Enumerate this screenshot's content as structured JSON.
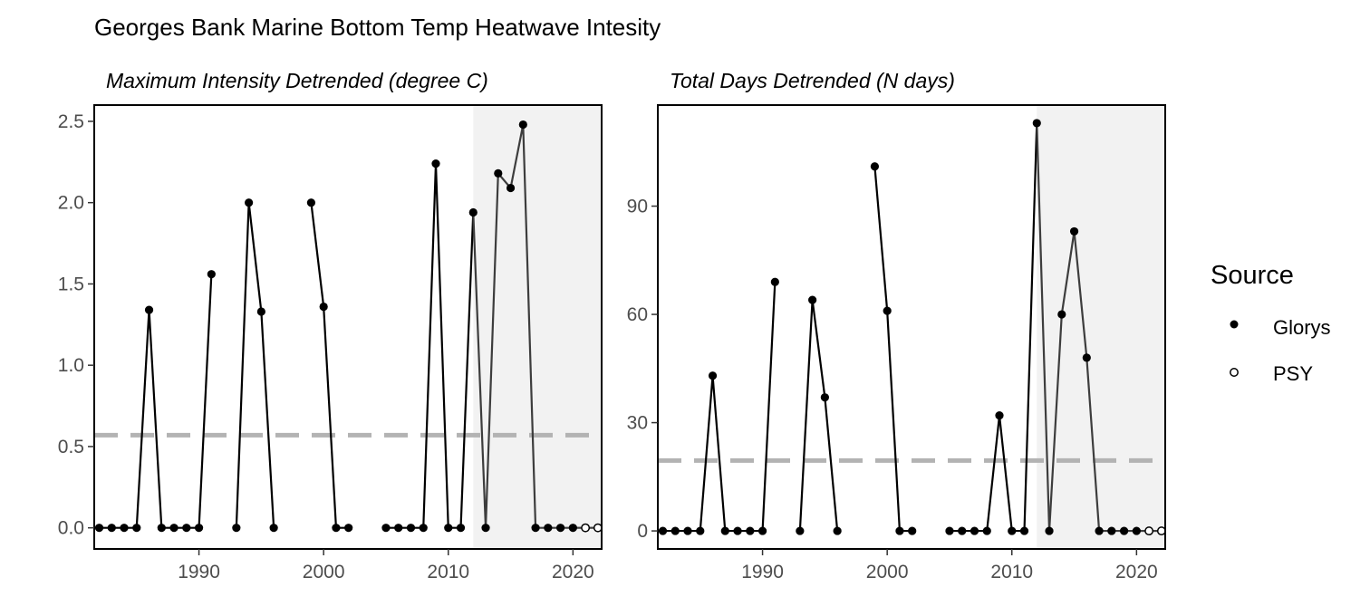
{
  "title": "Georges Bank Marine Bottom Temp Heatwave Intesity",
  "legend": {
    "title": "Source",
    "placement": "right",
    "items": [
      {
        "label": "Glorys",
        "marker": "filled-circle"
      },
      {
        "label": "PSY",
        "marker": "open-circle"
      }
    ]
  },
  "colors": {
    "line": "#000000",
    "line_shaded": "#3d3d3d",
    "reference": "#b3b3b3",
    "shade": "#f2f2f2",
    "tick_text": "#4d4d4d",
    "tick_mark": "#333333"
  },
  "chart_data": [
    {
      "type": "line",
      "title": "Maximum Intensity Detrended (degree C)",
      "xlabel": "",
      "ylabel": "",
      "xlim": [
        1981.6,
        2022.3
      ],
      "ylim": [
        -0.13,
        2.6
      ],
      "x_ticks": [
        1990,
        2000,
        2010,
        2020
      ],
      "y_ticks": [
        0.0,
        0.5,
        1.0,
        1.5,
        2.0,
        2.5
      ],
      "y_tick_labels": [
        "0.0",
        "0.5",
        "1.0",
        "1.5",
        "2.0",
        "2.5"
      ],
      "reference_line": 0.57,
      "shaded_x_range": [
        2012,
        2022.3
      ],
      "grid": false,
      "series": [
        {
          "name": "Glorys",
          "x": [
            1982,
            1983,
            1984,
            1985,
            1986,
            1987,
            1988,
            1989,
            1990,
            1991,
            1992,
            1993,
            1994,
            1995,
            1996,
            1997,
            1998,
            1999,
            2000,
            2001,
            2002,
            2003,
            2004,
            2005,
            2006,
            2007,
            2008,
            2009,
            2010,
            2011,
            2012,
            2013,
            2014,
            2015,
            2016,
            2017,
            2018,
            2019,
            2020
          ],
          "y": [
            0,
            0,
            0,
            0,
            1.34,
            0,
            0,
            0,
            0,
            1.56,
            null,
            0,
            2.0,
            1.33,
            0,
            null,
            null,
            2.0,
            1.36,
            0,
            0,
            null,
            null,
            0,
            0,
            0,
            0,
            2.24,
            0,
            0,
            1.94,
            0,
            2.18,
            2.09,
            2.48,
            0,
            0,
            0,
            0
          ]
        },
        {
          "name": "PSY",
          "x": [
            2021,
            2022
          ],
          "y": [
            0,
            0
          ]
        }
      ]
    },
    {
      "type": "line",
      "title": "Total Days Detrended (N days)",
      "xlabel": "",
      "ylabel": "",
      "xlim": [
        1981.6,
        2022.3
      ],
      "ylim": [
        -5,
        118
      ],
      "x_ticks": [
        1990,
        2000,
        2010,
        2020
      ],
      "y_ticks": [
        0,
        30,
        60,
        90
      ],
      "y_tick_labels": [
        "0",
        "30",
        "60",
        "90"
      ],
      "reference_line": 19.5,
      "shaded_x_range": [
        2012,
        2022.3
      ],
      "grid": false,
      "series": [
        {
          "name": "Glorys",
          "x": [
            1982,
            1983,
            1984,
            1985,
            1986,
            1987,
            1988,
            1989,
            1990,
            1991,
            1992,
            1993,
            1994,
            1995,
            1996,
            1997,
            1998,
            1999,
            2000,
            2001,
            2002,
            2003,
            2004,
            2005,
            2006,
            2007,
            2008,
            2009,
            2010,
            2011,
            2012,
            2013,
            2014,
            2015,
            2016,
            2017,
            2018,
            2019,
            2020
          ],
          "y": [
            0,
            0,
            0,
            0,
            43,
            0,
            0,
            0,
            0,
            69,
            null,
            0,
            64,
            37,
            0,
            null,
            null,
            101,
            61,
            0,
            0,
            null,
            null,
            0,
            0,
            0,
            0,
            32,
            0,
            0,
            113,
            0,
            60,
            83,
            48,
            0,
            0,
            0,
            0
          ]
        },
        {
          "name": "PSY",
          "x": [
            2021,
            2022
          ],
          "y": [
            0,
            0
          ]
        }
      ]
    }
  ]
}
